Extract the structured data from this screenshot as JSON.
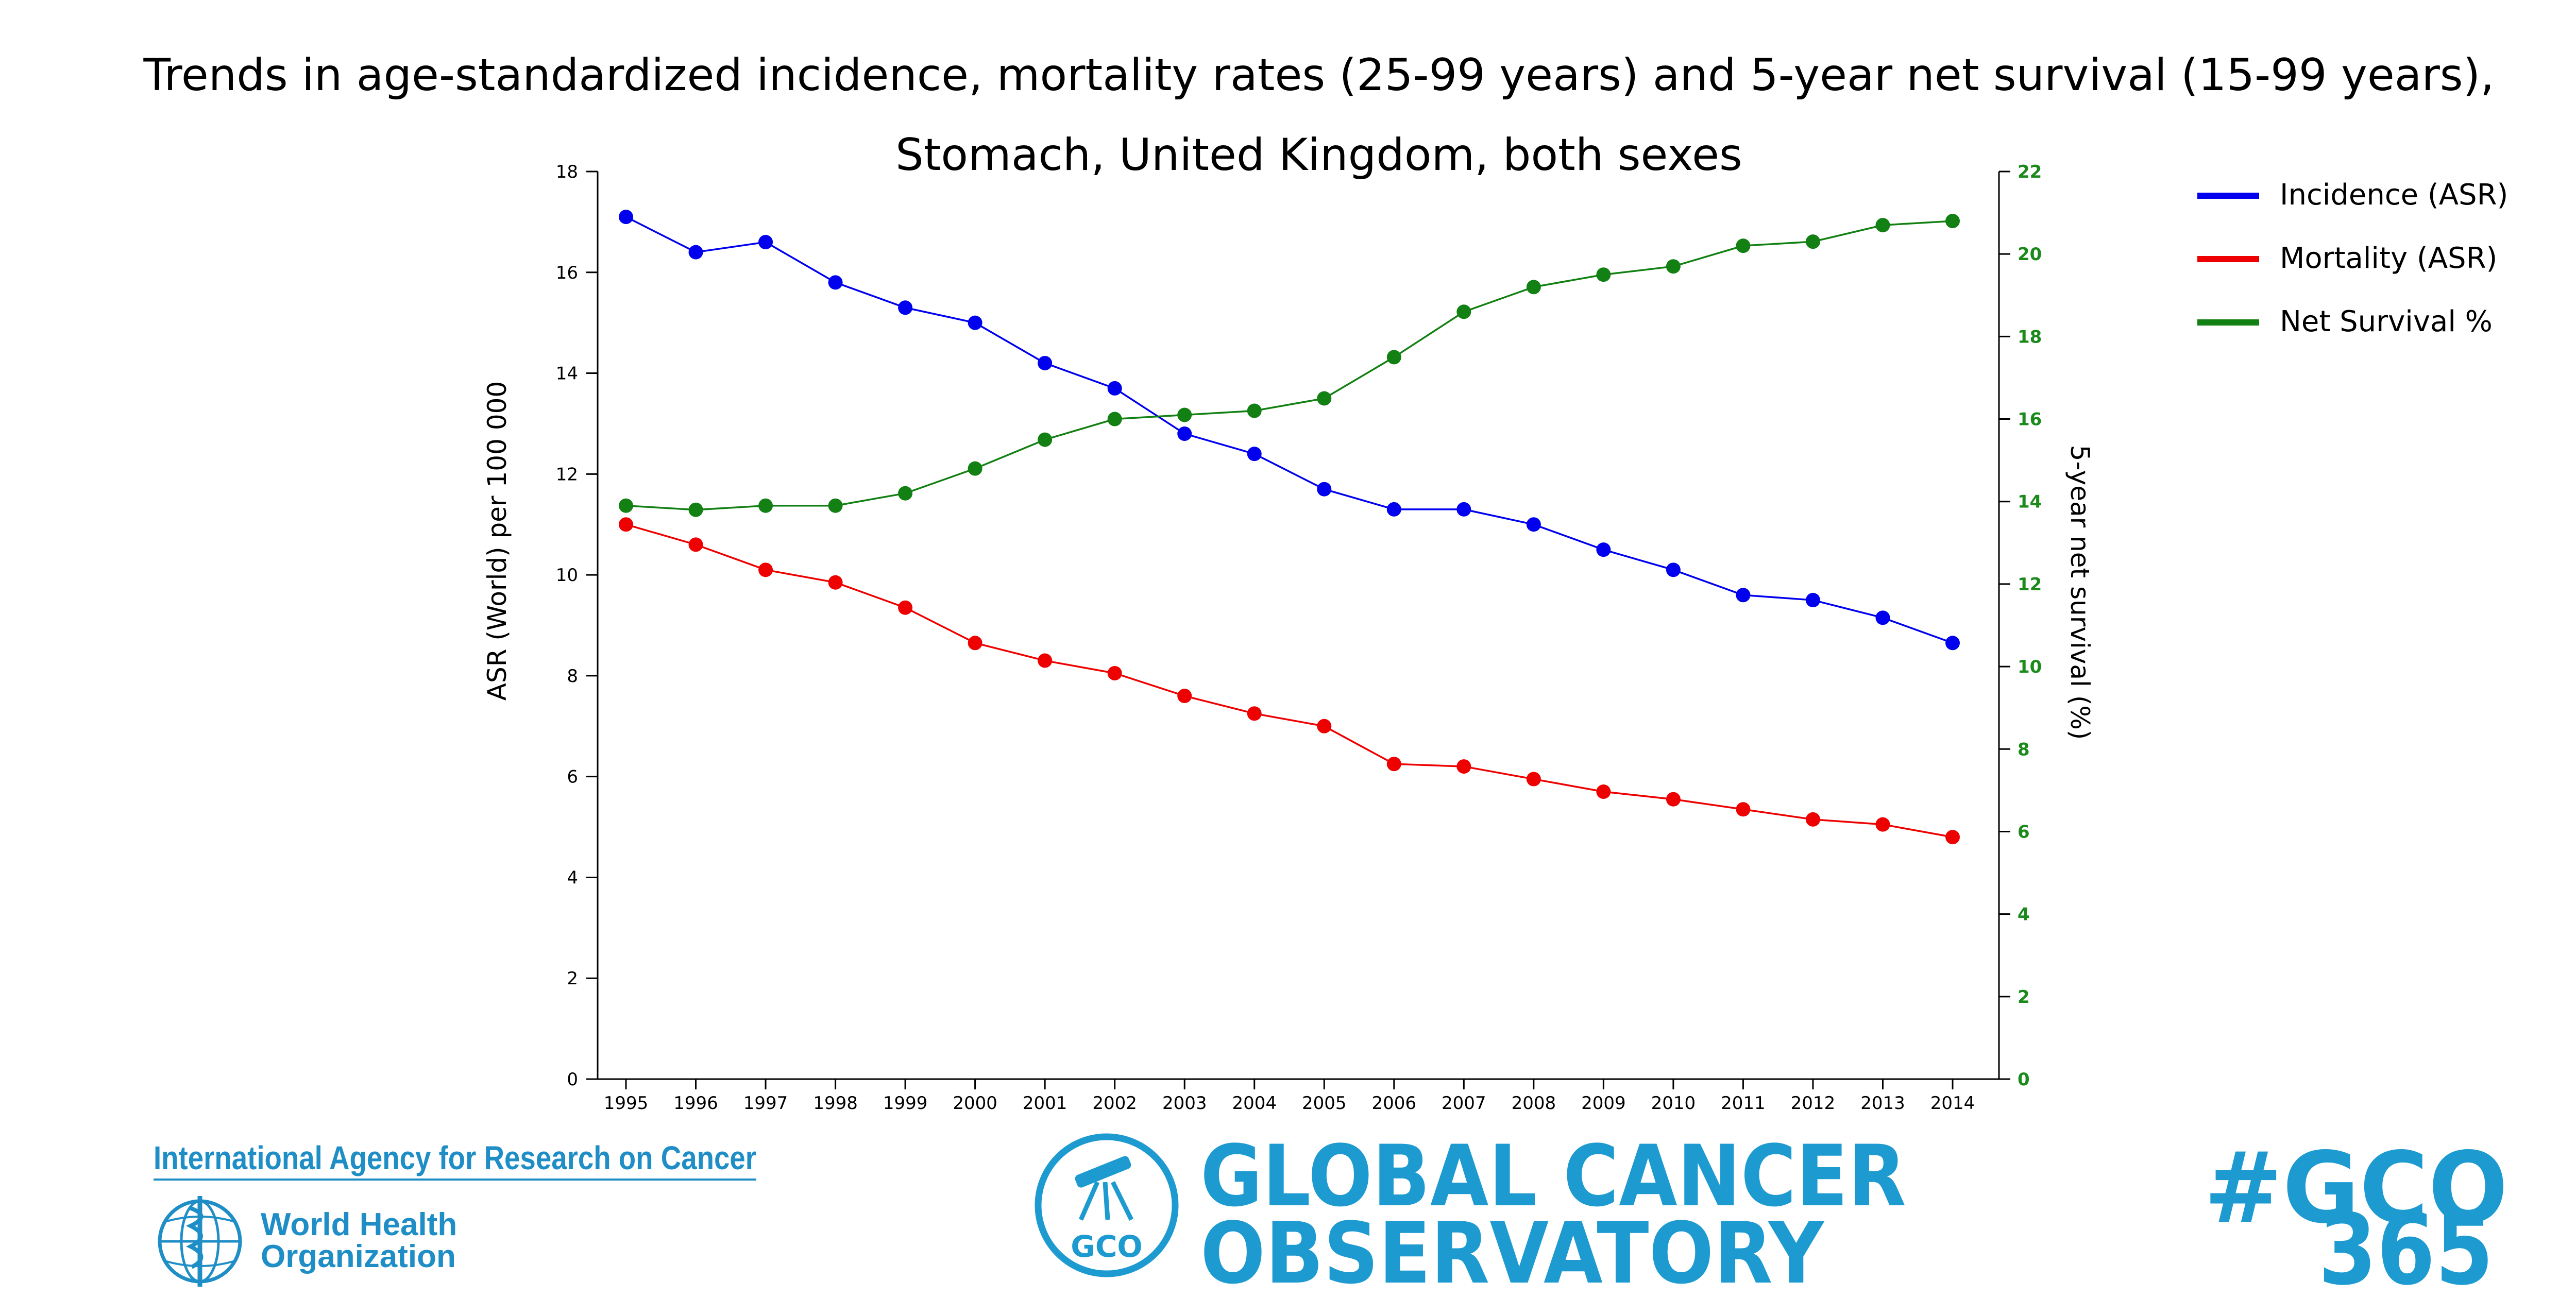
{
  "title_line1": "Trends in age-standardized incidence, mortality rates (25-99 years) and 5-year net survival (15-99 years),",
  "title_line2": "Stomach, United Kingdom, both sexes",
  "colors": {
    "incidence": "#0000ee",
    "mortality": "#ee0000",
    "survival": "#128012",
    "brand": "#1d9bd1"
  },
  "chart_data": {
    "type": "line",
    "x": [
      1995,
      1996,
      1997,
      1998,
      1999,
      2000,
      2001,
      2002,
      2003,
      2004,
      2005,
      2006,
      2007,
      2008,
      2009,
      2010,
      2011,
      2012,
      2013,
      2014
    ],
    "x_tick_labels": [
      "1995",
      "1996",
      "1997",
      "1998",
      "1999",
      "2000",
      "2001",
      "2002",
      "2003",
      "2004",
      "2005",
      "2006",
      "2007",
      "2008",
      "2009",
      "2010",
      "2011",
      "2012",
      "2013",
      "2014"
    ],
    "ylabel_left": "ASR (World) per 100 000",
    "ylim_left": [
      0,
      18
    ],
    "yticks_left": [
      "0",
      "2",
      "4",
      "6",
      "8",
      "10",
      "12",
      "14",
      "16",
      "18"
    ],
    "ylabel_right": "5-year net survival (%)",
    "ylim_right": [
      0,
      22
    ],
    "yticks_right": [
      "0",
      "2",
      "4",
      "6",
      "8",
      "10",
      "12",
      "14",
      "16",
      "18",
      "20",
      "22"
    ],
    "grid": false,
    "legend_position": "top-right",
    "series": [
      {
        "name": "Incidence (ASR)",
        "axis": "left",
        "values": [
          17.1,
          16.4,
          16.6,
          15.8,
          15.3,
          15.0,
          14.2,
          13.7,
          12.8,
          12.4,
          11.7,
          11.3,
          11.3,
          11.0,
          10.5,
          10.1,
          9.6,
          9.5,
          9.15,
          8.65
        ]
      },
      {
        "name": "Mortality (ASR)",
        "axis": "left",
        "values": [
          11.0,
          10.6,
          10.1,
          9.85,
          9.35,
          8.65,
          8.3,
          8.05,
          7.6,
          7.25,
          7.0,
          6.25,
          6.2,
          5.95,
          5.7,
          5.55,
          5.35,
          5.15,
          5.05,
          4.8
        ]
      },
      {
        "name": "Net Survival %",
        "axis": "right",
        "values": [
          13.9,
          13.8,
          13.9,
          13.9,
          14.2,
          14.8,
          15.5,
          16.0,
          16.1,
          16.2,
          16.5,
          17.5,
          18.6,
          19.2,
          19.5,
          19.7,
          20.2,
          20.3,
          20.7,
          20.8
        ]
      }
    ]
  },
  "footer": {
    "iarc": "International Agency for Research on Cancer",
    "who_line1": "World Health",
    "who_line2": "Organization",
    "gco_badge": "GCO",
    "gco_line1": "GLOBAL CANCER",
    "gco_line2": "OBSERVATORY",
    "hashtag_line1": "#GCO",
    "hashtag_line2": "365"
  }
}
